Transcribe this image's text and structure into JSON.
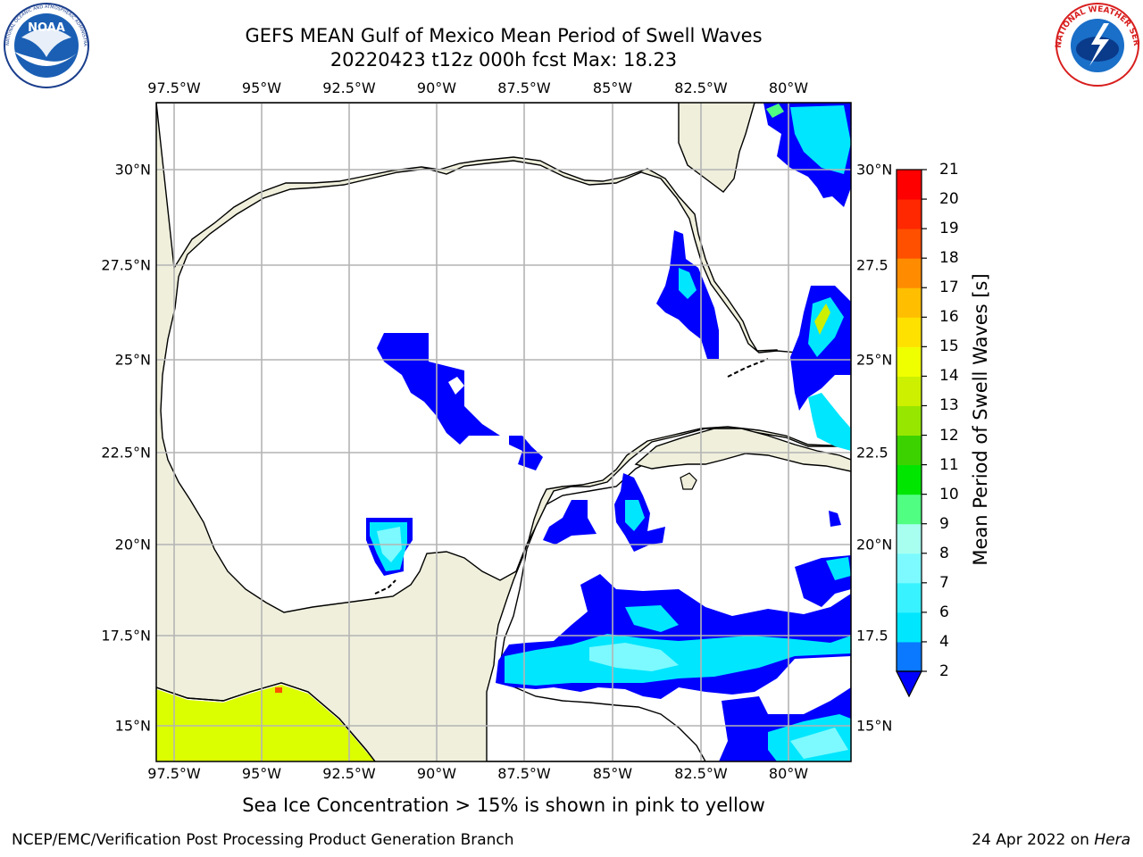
{
  "title_line1": "GEFS MEAN Gulf of Mexico Mean Period of Swell Waves",
  "title_line2": "20220423 t12z 000h fcst   Max: 18.23",
  "lon_ticks": [
    "97.5°W",
    "95°W",
    "92.5°W",
    "90°W",
    "87.5°W",
    "85°W",
    "82.5°W",
    "80°W"
  ],
  "lat_ticks_left": [
    "30°N",
    "27.5°N",
    "25°N",
    "22.5°N",
    "20°N",
    "17.5°N",
    "15°N"
  ],
  "lat_ticks_right": [
    "30°N",
    "27.5",
    "25°N",
    "22.5",
    "20°N",
    "17.5",
    "15°N"
  ],
  "colorbar": {
    "label": "Mean Period of Swell Waves [s]",
    "levels": [
      "2",
      "4",
      "6",
      "7",
      "8",
      "9",
      "10",
      "11",
      "12",
      "13",
      "14",
      "15",
      "16",
      "17",
      "18",
      "19",
      "20",
      "21"
    ],
    "colors": [
      "#0000ff",
      "#0a78ff",
      "#00e6ff",
      "#38f2ff",
      "#7cfaff",
      "#a8fff0",
      "#50ff82",
      "#00e600",
      "#3cd200",
      "#96e600",
      "#cdf000",
      "#f0ff00",
      "#ffe100",
      "#ffbe00",
      "#ff8c00",
      "#ff5000",
      "#ff2800",
      "#ff0000"
    ]
  },
  "note": "Sea Ice Concentration > 15% is shown in pink to yellow",
  "footer_left": "NCEP/EMC/Verification Post Processing Product Generation Branch",
  "footer_right_date": "24 Apr 2022 on",
  "footer_right_machine": "Hera",
  "logos": {
    "left": {
      "name": "noaa-logo",
      "text": "NOAA",
      "ring": "NATIONAL OCEANIC AND ATMOSPHERIC ADMINISTRATION · U.S. DEPARTMENT OF COMMERCE"
    },
    "right": {
      "name": "nws-logo",
      "ring": "NATIONAL WEATHER SERVICE"
    }
  },
  "colors": {
    "land": "#efefdc",
    "ocean": "#ffffff",
    "grid": "#b4b4b4",
    "swell_low": "#0000ff",
    "swell_mid": "#00e6ff",
    "swell_pale": "#7cfaff",
    "yellow": "#dcff00"
  }
}
